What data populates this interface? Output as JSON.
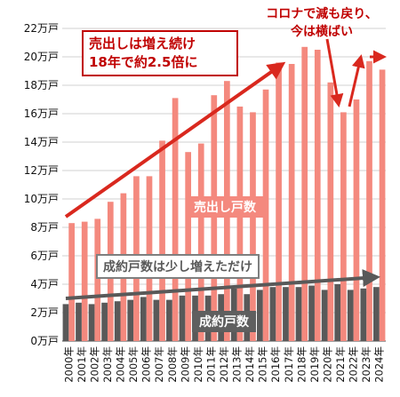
{
  "chart_data": {
    "type": "bar",
    "title": "",
    "xlabel": "",
    "ylabel": "",
    "ylim": [
      0,
      22
    ],
    "y_unit": "万戸",
    "y_ticks": [
      {
        "value": 0,
        "label": "0万戸"
      },
      {
        "value": 2,
        "label": "2万戸"
      },
      {
        "value": 4,
        "label": "4万戸"
      },
      {
        "value": 6,
        "label": "6万戸"
      },
      {
        "value": 8,
        "label": "8万戸"
      },
      {
        "value": 10,
        "label": "10万戸"
      },
      {
        "value": 12,
        "label": "12万戸"
      },
      {
        "value": 14,
        "label": "14万戸"
      },
      {
        "value": 16,
        "label": "16万戸"
      },
      {
        "value": 18,
        "label": "18万戸"
      },
      {
        "value": 20,
        "label": "20万戸"
      },
      {
        "value": 22,
        "label": "22万戸"
      }
    ],
    "grid": true,
    "categories": [
      "2000年",
      "2001年",
      "2002年",
      "2003年",
      "2004年",
      "2005年",
      "2006年",
      "2007年",
      "2008年",
      "2009年",
      "2010年",
      "2011年",
      "2012年",
      "2013年",
      "2014年",
      "2015年",
      "2016年",
      "2017年",
      "2018年",
      "2019年",
      "2020年",
      "2021年",
      "2022年",
      "2023年",
      "2024年"
    ],
    "series": [
      {
        "name": "成約戸数",
        "color": "#595959",
        "values": [
          2.6,
          2.7,
          2.6,
          2.7,
          2.8,
          2.9,
          3.1,
          2.9,
          2.9,
          3.2,
          3.2,
          3.2,
          3.3,
          3.7,
          3.3,
          3.6,
          3.8,
          3.8,
          3.8,
          3.9,
          3.6,
          4.0,
          3.6,
          3.7,
          3.8
        ]
      },
      {
        "name": "売出し戸数",
        "color": "#f4897e",
        "values": [
          8.3,
          8.4,
          8.6,
          9.8,
          10.4,
          11.6,
          11.6,
          14.1,
          17.1,
          13.3,
          13.9,
          17.3,
          18.3,
          16.5,
          16.1,
          17.7,
          19.6,
          19.5,
          20.7,
          20.5,
          18.2,
          16.1,
          17.0,
          19.7,
          19.1
        ]
      }
    ]
  },
  "annotations": {
    "growth_line1": "売出しは増え続け",
    "growth_line2": "18年で約2.5倍に",
    "corona_line1": "コロナで減も戻り、",
    "corona_line2": "今は横ばい",
    "listings_label": "売出し戸数",
    "deals_label": "成約戸数",
    "slight_increase": "成約戸数は少し増えただけ"
  },
  "colors": {
    "listings": "#f4897e",
    "deals": "#595959",
    "red_arrow": "#d9281e",
    "gray_arrow": "#595959",
    "annotation_red": "#c00000"
  }
}
